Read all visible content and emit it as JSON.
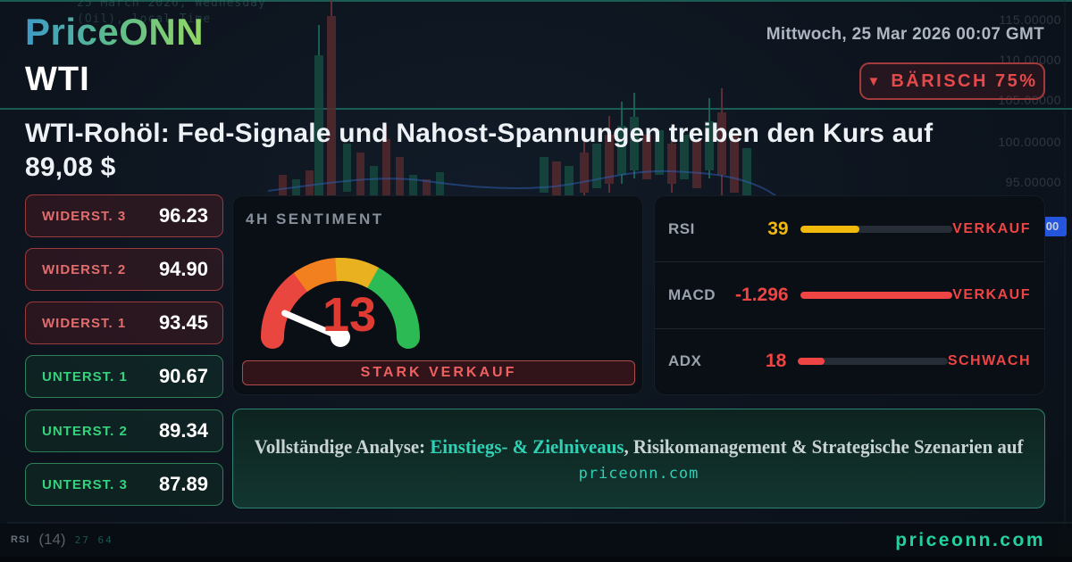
{
  "header": {
    "logo": "PriceONN",
    "datetime": "Mittwoch, 25 Mar 2026 00:07 GMT",
    "symbol": "WTI",
    "badge": {
      "arrow": "▼",
      "label": "BÄRISCH 75%",
      "direction": "bearish"
    }
  },
  "headline": "WTI-Rohöl: Fed-Signale und Nahost-Spannungen treiben den Kurs auf 89,08 $",
  "levels": [
    {
      "label": "WIDERST. 3",
      "value": "96.23",
      "type": "resistance"
    },
    {
      "label": "WIDERST. 2",
      "value": "94.90",
      "type": "resistance"
    },
    {
      "label": "WIDERST. 1",
      "value": "93.45",
      "type": "resistance"
    },
    {
      "label": "UNTERST. 1",
      "value": "90.67",
      "type": "support"
    },
    {
      "label": "UNTERST. 2",
      "value": "89.34",
      "type": "support"
    },
    {
      "label": "UNTERST. 3",
      "value": "87.89",
      "type": "support"
    }
  ],
  "sentiment": {
    "title": "4H SENTIMENT",
    "value": "13",
    "scale_max": 100,
    "label": "STARK VERKAUF"
  },
  "indicators": [
    {
      "name": "RSI",
      "value": "39",
      "fill_pct": 39,
      "status": "VERKAUF",
      "color": "#f0b90b"
    },
    {
      "name": "MACD",
      "value": "-1.296",
      "fill_pct": 100,
      "status": "VERKAUF",
      "color": "#ef4444"
    },
    {
      "name": "ADX",
      "value": "18",
      "fill_pct": 18,
      "status": "SCHWACH",
      "color": "#ef4444"
    }
  ],
  "banner": {
    "prefix": "Vollständige Analyse: ",
    "highlight": "Einstiegs- & Zielniveaus",
    "suffix": ", Risikomanagement & Strategische Szenarien auf",
    "domain": "priceonn.com"
  },
  "footer": {
    "site": "priceonn.com",
    "rsi_label": "RSI",
    "rsi_period": "(14)",
    "rsi_values": "27 64"
  },
  "background": {
    "watermark_line1": "25 March 2026, Wednesday",
    "watermark_line2": "(Oil), local Time",
    "price_labels": [
      "115.00000",
      "110.00000",
      "105.00000",
      "100.00000",
      "95.00000"
    ],
    "price_tag": "00"
  },
  "colors": {
    "bearish": "#ef4444",
    "bullish": "#35d37d",
    "accent_teal": "#2fd0b4",
    "warning": "#f0b90b"
  }
}
